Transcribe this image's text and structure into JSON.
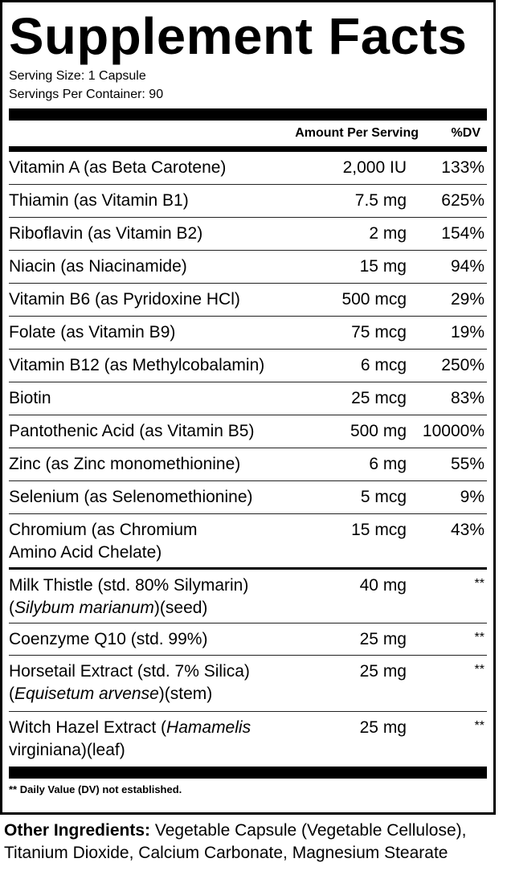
{
  "title": "Supplement Facts",
  "serving_size": "Serving Size: 1 Capsule",
  "servings_per_container": "Servings Per Container: 90",
  "headers": {
    "amount": "Amount Per Serving",
    "dv": "%DV"
  },
  "vitamins": [
    {
      "name": "Vitamin A (as Beta Carotene)",
      "amount": "2,000 IU",
      "dv": "133%"
    },
    {
      "name": "Thiamin (as Vitamin B1)",
      "amount": "7.5 mg",
      "dv": "625%"
    },
    {
      "name": "Riboflavin (as Vitamin B2)",
      "amount": "2 mg",
      "dv": "154%"
    },
    {
      "name": "Niacin (as Niacinamide)",
      "amount": "15 mg",
      "dv": "94%"
    },
    {
      "name": "Vitamin B6 (as Pyridoxine HCl)",
      "amount": "500 mcg",
      "dv": "29%"
    },
    {
      "name": "Folate (as Vitamin B9)",
      "amount": "75 mcg",
      "dv": "19%"
    },
    {
      "name": "Vitamin B12 (as Methylcobalamin)",
      "amount": "6 mcg",
      "dv": "250%"
    },
    {
      "name": "Biotin",
      "amount": "25 mcg",
      "dv": "83%"
    },
    {
      "name": "Pantothenic Acid (as Vitamin B5)",
      "amount": "500 mg",
      "dv": "10000%"
    },
    {
      "name": "Zinc (as Zinc monomethionine)",
      "amount": "6 mg",
      "dv": "55%"
    },
    {
      "name": "Selenium (as Selenomethionine)",
      "amount": "5 mcg",
      "dv": "9%"
    },
    {
      "name": "Chromium (as Chromium Amino Acid Chelate)",
      "amount": "15 mcg",
      "dv": "43%"
    }
  ],
  "herbals": [
    {
      "line1": "Milk Thistle (std. 80% Silymarin)",
      "latin": "Silybum marianum",
      "part": "(seed)",
      "amount": "40 mg",
      "dv": "**"
    },
    {
      "name": "Coenzyme Q10 (std. 99%)",
      "amount": "25 mg",
      "dv": "**"
    },
    {
      "line1": "Horsetail Extract (std. 7% Silica)",
      "latin": "Equisetum arvense",
      "part": "(stem)",
      "amount": "25 mg",
      "dv": "**"
    },
    {
      "prefix": "Witch Hazel Extract (",
      "latin": "Hamamelis",
      "rest": "virginiana)(leaf)",
      "amount": "25 mg",
      "dv": "**"
    }
  ],
  "footnote": "** Daily Value (DV) not established.",
  "other_ingredients": {
    "label": "Other Ingredients:",
    "text": " Vegetable Capsule (Vegetable Cellulose), Titanium Dioxide, Calcium Carbonate, Magnesium Stearate"
  }
}
